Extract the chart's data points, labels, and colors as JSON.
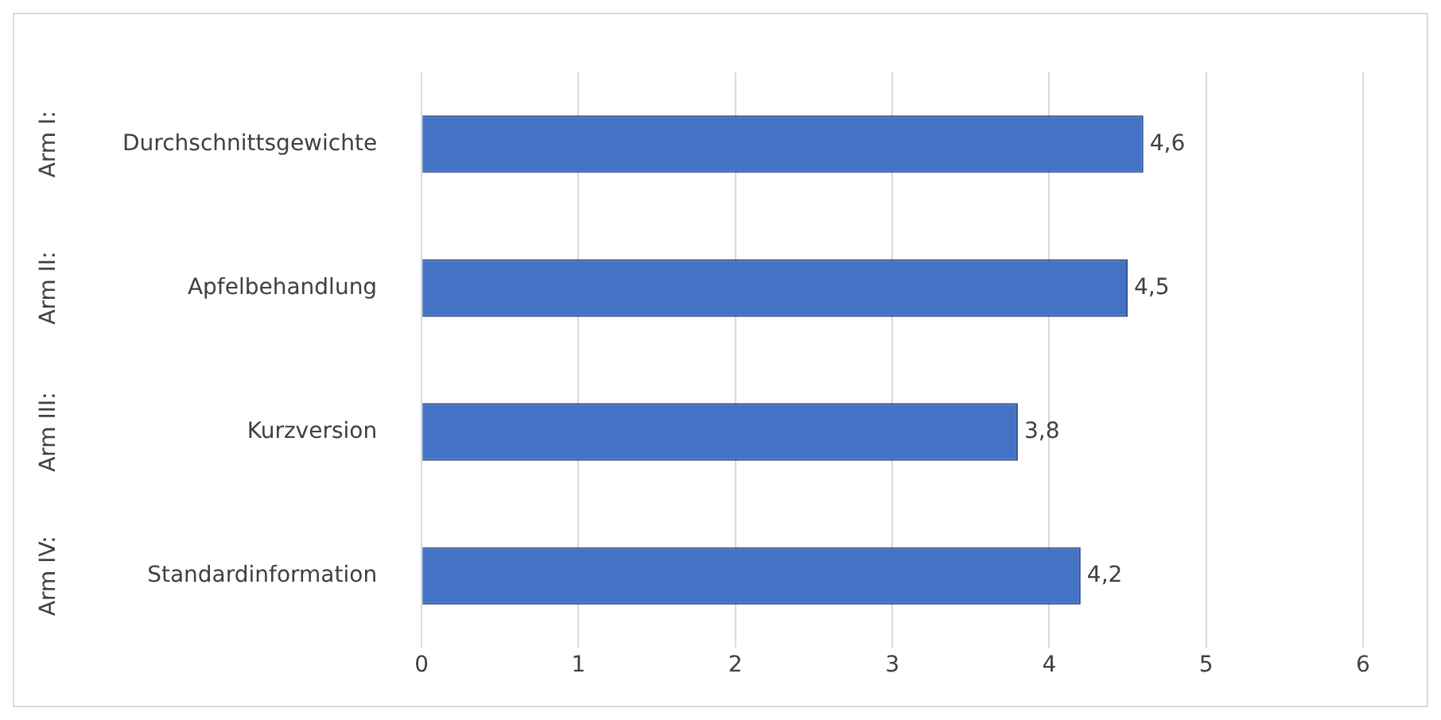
{
  "chart_data": {
    "type": "bar",
    "orientation": "horizontal",
    "categories": [
      "Durchschnittsgewichte",
      "Apfelbehandlung",
      "Kurzversion",
      "Standardinformation"
    ],
    "values": [
      4.6,
      4.5,
      3.8,
      4.2
    ],
    "color": "#4472c4",
    "xlim": [
      0,
      6
    ],
    "xticks": [
      0,
      1,
      2,
      3,
      4,
      5,
      6
    ],
    "grid": "x",
    "value_labels": [
      "4,6",
      "4,5",
      "3,8",
      "4,2"
    ],
    "legend": false,
    "annotations": [
      "Arm I:",
      "Arm II:",
      "Arm III:",
      "Arm IV:"
    ]
  }
}
